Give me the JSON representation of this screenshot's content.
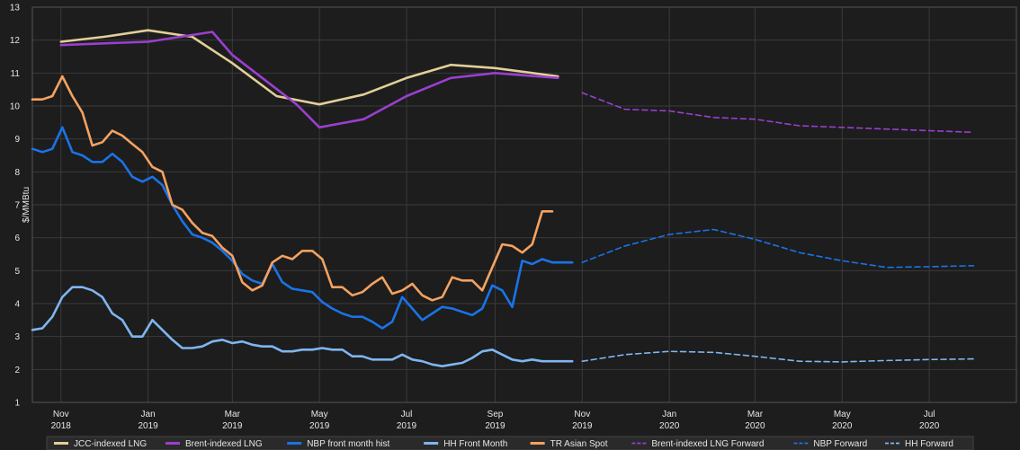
{
  "chart_data": {
    "type": "line",
    "ylabel": "$/MMBtu",
    "ylim": [
      1,
      13
    ],
    "xlim": [
      "2018-10-12",
      "2020-08-31"
    ],
    "y_ticks": [
      1,
      2,
      3,
      4,
      5,
      6,
      7,
      8,
      9,
      10,
      11,
      12,
      13
    ],
    "x_ticks": [
      {
        "date": "2018-11-01",
        "line1": "Nov",
        "line2": "2018"
      },
      {
        "date": "2019-01-01",
        "line1": "Jan",
        "line2": "2019"
      },
      {
        "date": "2019-03-01",
        "line1": "Mar",
        "line2": "2019"
      },
      {
        "date": "2019-05-01",
        "line1": "May",
        "line2": "2019"
      },
      {
        "date": "2019-07-01",
        "line1": "Jul",
        "line2": "2019"
      },
      {
        "date": "2019-09-01",
        "line1": "Sep",
        "line2": "2019"
      },
      {
        "date": "2019-11-01",
        "line1": "Nov",
        "line2": "2019"
      },
      {
        "date": "2020-01-01",
        "line1": "Jan",
        "line2": "2020"
      },
      {
        "date": "2020-03-01",
        "line1": "Mar",
        "line2": "2020"
      },
      {
        "date": "2020-05-01",
        "line1": "May",
        "line2": "2020"
      },
      {
        "date": "2020-07-01",
        "line1": "Jul",
        "line2": "2020"
      }
    ],
    "grid": true,
    "legend_position": "bottom",
    "series": [
      {
        "name": "JCC-indexed LNG",
        "color": "#e2cf98",
        "dash": false,
        "x": [
          "2018-11-01",
          "2018-12-01",
          "2019-01-01",
          "2019-02-01",
          "2019-03-01",
          "2019-04-01",
          "2019-05-01",
          "2019-06-01",
          "2019-07-01",
          "2019-08-01",
          "2019-09-01",
          "2019-10-15"
        ],
        "y": [
          11.95,
          12.1,
          12.3,
          12.1,
          11.3,
          10.3,
          10.05,
          10.35,
          10.85,
          11.25,
          11.15,
          10.9
        ]
      },
      {
        "name": "Brent-indexed LNG",
        "color": "#9a3fd0",
        "dash": false,
        "x": [
          "2018-11-01",
          "2018-12-01",
          "2019-01-01",
          "2019-02-15",
          "2019-03-01",
          "2019-04-15",
          "2019-05-01",
          "2019-06-01",
          "2019-07-01",
          "2019-08-01",
          "2019-09-01",
          "2019-10-15"
        ],
        "y": [
          11.85,
          11.9,
          11.95,
          12.25,
          11.55,
          10.05,
          9.35,
          9.6,
          10.3,
          10.85,
          11.0,
          10.85
        ]
      },
      {
        "name": "NBP front month hist",
        "color": "#1a73e8",
        "dash": false,
        "x": [
          "2018-10-12",
          "2018-10-19",
          "2018-10-26",
          "2018-11-02",
          "2018-11-09",
          "2018-11-16",
          "2018-11-23",
          "2018-11-30",
          "2018-12-07",
          "2018-12-14",
          "2018-12-21",
          "2018-12-28",
          "2019-01-04",
          "2019-01-11",
          "2019-01-18",
          "2019-01-25",
          "2019-02-01",
          "2019-02-08",
          "2019-02-15",
          "2019-02-22",
          "2019-03-01",
          "2019-03-08",
          "2019-03-15",
          "2019-03-22",
          "2019-03-29",
          "2019-04-05",
          "2019-04-12",
          "2019-04-19",
          "2019-04-26",
          "2019-05-03",
          "2019-05-10",
          "2019-05-17",
          "2019-05-24",
          "2019-05-31",
          "2019-06-07",
          "2019-06-14",
          "2019-06-21",
          "2019-06-28",
          "2019-07-05",
          "2019-07-12",
          "2019-07-19",
          "2019-07-26",
          "2019-08-02",
          "2019-08-09",
          "2019-08-16",
          "2019-08-23",
          "2019-08-30",
          "2019-09-06",
          "2019-09-13",
          "2019-09-20",
          "2019-09-27",
          "2019-10-04",
          "2019-10-11",
          "2019-10-18",
          "2019-10-25"
        ],
        "y": [
          8.7,
          8.6,
          8.7,
          9.35,
          8.6,
          8.5,
          8.3,
          8.3,
          8.55,
          8.3,
          7.85,
          7.7,
          7.85,
          7.6,
          7.0,
          6.5,
          6.1,
          6.0,
          5.85,
          5.6,
          5.3,
          4.9,
          4.7,
          4.6,
          5.2,
          4.65,
          4.45,
          4.4,
          4.35,
          4.05,
          3.85,
          3.7,
          3.6,
          3.6,
          3.45,
          3.25,
          3.45,
          4.2,
          3.85,
          3.5,
          3.7,
          3.9,
          3.85,
          3.75,
          3.65,
          3.85,
          4.55,
          4.4,
          3.9,
          5.3,
          5.2,
          5.35,
          5.25,
          5.25,
          5.25
        ]
      },
      {
        "name": "HH Front Month",
        "color": "#7fb5f0",
        "dash": false,
        "x": [
          "2018-10-12",
          "2018-10-19",
          "2018-10-26",
          "2018-11-02",
          "2018-11-09",
          "2018-11-16",
          "2018-11-23",
          "2018-11-30",
          "2018-12-07",
          "2018-12-14",
          "2018-12-21",
          "2018-12-28",
          "2019-01-04",
          "2019-01-11",
          "2019-01-18",
          "2019-01-25",
          "2019-02-01",
          "2019-02-08",
          "2019-02-15",
          "2019-02-22",
          "2019-03-01",
          "2019-03-08",
          "2019-03-15",
          "2019-03-22",
          "2019-03-29",
          "2019-04-05",
          "2019-04-12",
          "2019-04-19",
          "2019-04-26",
          "2019-05-03",
          "2019-05-10",
          "2019-05-17",
          "2019-05-24",
          "2019-05-31",
          "2019-06-07",
          "2019-06-14",
          "2019-06-21",
          "2019-06-28",
          "2019-07-05",
          "2019-07-12",
          "2019-07-19",
          "2019-07-26",
          "2019-08-02",
          "2019-08-09",
          "2019-08-16",
          "2019-08-23",
          "2019-08-30",
          "2019-09-06",
          "2019-09-13",
          "2019-09-20",
          "2019-09-27",
          "2019-10-04",
          "2019-10-11",
          "2019-10-18",
          "2019-10-25"
        ],
        "y": [
          3.2,
          3.25,
          3.6,
          4.2,
          4.5,
          4.5,
          4.4,
          4.2,
          3.7,
          3.5,
          3.0,
          3.0,
          3.5,
          3.2,
          2.9,
          2.65,
          2.65,
          2.7,
          2.85,
          2.9,
          2.8,
          2.85,
          2.75,
          2.7,
          2.7,
          2.55,
          2.55,
          2.6,
          2.6,
          2.65,
          2.6,
          2.6,
          2.4,
          2.4,
          2.3,
          2.3,
          2.3,
          2.45,
          2.3,
          2.25,
          2.15,
          2.1,
          2.15,
          2.2,
          2.35,
          2.55,
          2.6,
          2.45,
          2.3,
          2.25,
          2.3,
          2.25,
          2.25,
          2.25,
          2.25
        ]
      },
      {
        "name": "TR Asian Spot",
        "color": "#f4a261",
        "dash": false,
        "x": [
          "2018-10-12",
          "2018-10-19",
          "2018-10-26",
          "2018-11-02",
          "2018-11-09",
          "2018-11-16",
          "2018-11-23",
          "2018-11-30",
          "2018-12-07",
          "2018-12-14",
          "2018-12-21",
          "2018-12-28",
          "2019-01-04",
          "2019-01-11",
          "2019-01-18",
          "2019-01-25",
          "2019-02-01",
          "2019-02-08",
          "2019-02-15",
          "2019-02-22",
          "2019-03-01",
          "2019-03-08",
          "2019-03-15",
          "2019-03-22",
          "2019-03-29",
          "2019-04-05",
          "2019-04-12",
          "2019-04-19",
          "2019-04-26",
          "2019-05-03",
          "2019-05-10",
          "2019-05-17",
          "2019-05-24",
          "2019-05-31",
          "2019-06-07",
          "2019-06-14",
          "2019-06-21",
          "2019-06-28",
          "2019-07-05",
          "2019-07-12",
          "2019-07-19",
          "2019-07-26",
          "2019-08-02",
          "2019-08-09",
          "2019-08-16",
          "2019-08-23",
          "2019-08-30",
          "2019-09-06",
          "2019-09-13",
          "2019-09-20",
          "2019-09-27",
          "2019-10-04",
          "2019-10-11"
        ],
        "y": [
          10.2,
          10.2,
          10.3,
          10.9,
          10.3,
          9.8,
          8.8,
          8.9,
          9.25,
          9.1,
          8.85,
          8.6,
          8.15,
          8.0,
          7.0,
          6.85,
          6.45,
          6.15,
          6.05,
          5.7,
          5.45,
          4.65,
          4.4,
          4.55,
          5.25,
          5.45,
          5.35,
          5.6,
          5.6,
          5.35,
          4.5,
          4.5,
          4.25,
          4.35,
          4.6,
          4.8,
          4.3,
          4.4,
          4.6,
          4.25,
          4.1,
          4.2,
          4.8,
          4.7,
          4.7,
          4.4,
          5.1,
          5.8,
          5.75,
          5.55,
          5.8,
          6.8,
          6.8
        ]
      },
      {
        "name": "Brent-indexed LNG Forward",
        "color": "#9a3fd0",
        "dash": true,
        "x": [
          "2019-11-01",
          "2019-12-01",
          "2020-01-01",
          "2020-02-01",
          "2020-03-01",
          "2020-04-01",
          "2020-05-01",
          "2020-06-01",
          "2020-07-01",
          "2020-08-01"
        ],
        "y": [
          10.4,
          9.9,
          9.85,
          9.65,
          9.6,
          9.4,
          9.35,
          9.3,
          9.25,
          9.2
        ]
      },
      {
        "name": "NBP Forward",
        "color": "#1a73e8",
        "dash": true,
        "x": [
          "2019-11-01",
          "2019-12-01",
          "2020-01-01",
          "2020-02-01",
          "2020-03-01",
          "2020-04-01",
          "2020-05-01",
          "2020-06-01",
          "2020-07-01",
          "2020-08-01"
        ],
        "y": [
          5.25,
          5.75,
          6.1,
          6.25,
          5.95,
          5.55,
          5.3,
          5.1,
          5.12,
          5.15
        ]
      },
      {
        "name": "HH Forward",
        "color": "#7fb5f0",
        "dash": true,
        "x": [
          "2019-11-01",
          "2019-12-01",
          "2020-01-01",
          "2020-02-01",
          "2020-03-01",
          "2020-04-01",
          "2020-05-01",
          "2020-06-01",
          "2020-07-01",
          "2020-08-01"
        ],
        "y": [
          2.25,
          2.45,
          2.55,
          2.52,
          2.4,
          2.25,
          2.23,
          2.27,
          2.3,
          2.32
        ]
      }
    ]
  }
}
